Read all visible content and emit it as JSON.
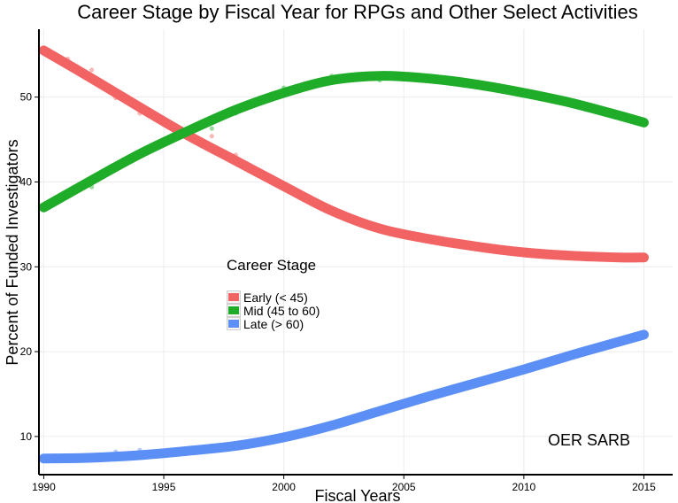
{
  "chart_data": {
    "type": "line",
    "title": "Career Stage by Fiscal Year for RPGs and Other Select Activities",
    "xlabel": "Fiscal Years",
    "ylabel": "Percent of Funded Investigators",
    "xlim": [
      1989.8,
      2016.2
    ],
    "ylim": [
      5.5,
      58
    ],
    "xticks": [
      1990,
      1995,
      2000,
      2005,
      2010,
      2015
    ],
    "yticks": [
      10,
      20,
      30,
      40,
      50
    ],
    "grid": true,
    "legend": {
      "title": "Career Stage",
      "placement": "center-left",
      "entries": [
        "Early (< 45)",
        "Mid (45 to 60)",
        "Late (> 60)"
      ]
    },
    "annotation": "OER SARB",
    "series": [
      {
        "name": "Early (< 45)",
        "color": "#f26464",
        "smooth": {
          "x": [
            1990,
            1992,
            1994,
            1996,
            1998,
            2000,
            2002,
            2004,
            2006,
            2008,
            2010,
            2012,
            2014,
            2015
          ],
          "y": [
            55.5,
            52.2,
            48.8,
            45.5,
            42.5,
            39.5,
            36.6,
            34.5,
            33.3,
            32.4,
            31.7,
            31.3,
            31.1,
            31.1
          ]
        },
        "points": {
          "x": [
            1990,
            1991,
            1992,
            1993,
            1994,
            1997,
            1998,
            2011,
            2015
          ],
          "y": [
            55.8,
            54.5,
            53.2,
            49.9,
            48.1,
            45.4,
            43.2,
            31.6,
            30.9
          ]
        }
      },
      {
        "name": "Mid (45 to 60)",
        "color": "#1fac28",
        "smooth": {
          "x": [
            1990,
            1992,
            1994,
            1996,
            1998,
            2000,
            2002,
            2004,
            2006,
            2008,
            2010,
            2012,
            2014,
            2015
          ],
          "y": [
            37.0,
            40.2,
            43.3,
            46.0,
            48.5,
            50.5,
            52.0,
            52.5,
            52.2,
            51.5,
            50.5,
            49.3,
            47.8,
            47.0
          ]
        },
        "points": {
          "x": [
            1990,
            1992,
            1997,
            1998,
            2000,
            2002,
            2004,
            2015
          ],
          "y": [
            37.3,
            39.4,
            46.3,
            48.1,
            51.1,
            52.5,
            52.0,
            47.0
          ]
        }
      },
      {
        "name": "Late (> 60)",
        "color": "#5b8ff5",
        "smooth": {
          "x": [
            1990,
            1992,
            1994,
            1996,
            1998,
            2000,
            2002,
            2004,
            2006,
            2008,
            2010,
            2012,
            2014,
            2015
          ],
          "y": [
            7.4,
            7.5,
            7.8,
            8.3,
            8.9,
            9.9,
            11.3,
            13.0,
            14.7,
            16.3,
            17.9,
            19.6,
            21.2,
            22.0
          ]
        },
        "points": {
          "x": [
            1990,
            1993,
            1994,
            1995,
            2015
          ],
          "y": [
            7.2,
            8.2,
            8.4,
            8.3,
            22.0
          ]
        }
      }
    ]
  }
}
